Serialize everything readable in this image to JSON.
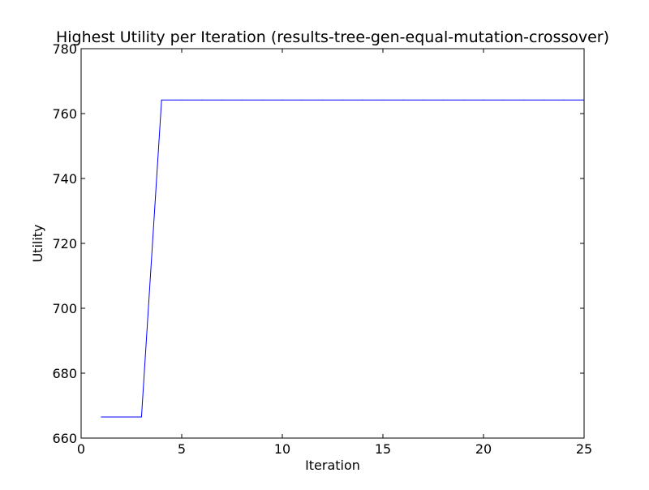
{
  "chart_data": {
    "type": "line",
    "title": "Highest Utility per Iteration (results-tree-gen-equal-mutation-crossover)",
    "xlabel": "Iteration",
    "ylabel": "Utility",
    "xlim": [
      0,
      25
    ],
    "ylim": [
      660,
      780
    ],
    "xticks": [
      0,
      5,
      10,
      15,
      20,
      25
    ],
    "yticks": [
      660,
      680,
      700,
      720,
      740,
      760,
      780
    ],
    "grid": false,
    "line_color": "#0000ff",
    "series": [
      {
        "x": [
          1,
          2,
          3,
          4,
          5,
          6,
          7,
          8,
          9,
          10,
          11,
          12,
          13,
          14,
          15,
          16,
          17,
          18,
          19,
          20,
          21,
          22,
          23,
          24,
          25
        ],
        "values": [
          666.5,
          666.5,
          666.5,
          764.2,
          764.2,
          764.2,
          764.2,
          764.2,
          764.2,
          764.2,
          764.2,
          764.2,
          764.2,
          764.2,
          764.2,
          764.2,
          764.2,
          764.2,
          764.2,
          764.2,
          764.2,
          764.2,
          764.2,
          764.2,
          764.2
        ]
      }
    ]
  }
}
